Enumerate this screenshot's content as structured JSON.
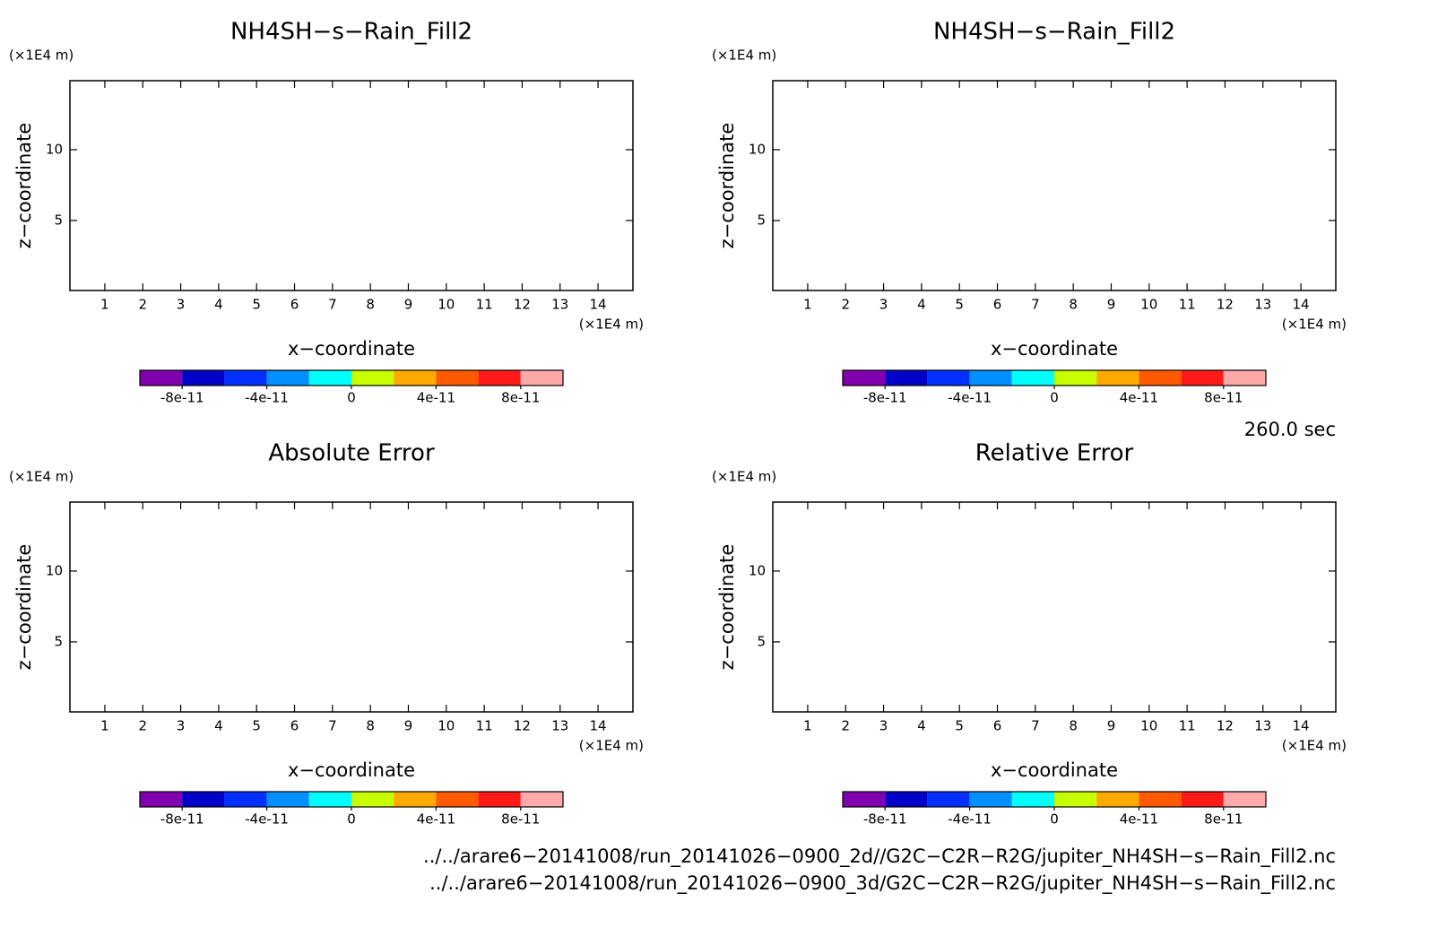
{
  "chart_data": [
    {
      "type": "contour",
      "title": "NH4SH−s−Rain_Fill2",
      "xlabel": "x−coordinate",
      "ylabel": "z−coordinate",
      "xunit": "(×1E4 m)",
      "yunit": "(×1E4 m)",
      "xlim": [
        0.08,
        14.92
      ],
      "ylim": [
        0.06,
        14.87
      ],
      "xticks": [
        1,
        2,
        3,
        4,
        5,
        6,
        7,
        8,
        9,
        10,
        11,
        12,
        13,
        14
      ],
      "yticks": [
        5,
        10
      ],
      "colorbar": {
        "colors": [
          "#8000b0",
          "#0000c8",
          "#0030ff",
          "#0090ff",
          "#00ffff",
          "#c8ff00",
          "#ffaa00",
          "#ff5a00",
          "#ff1a1a",
          "#ffaaaa"
        ],
        "bounds": [
          -1e-10,
          -8e-11,
          -6e-11,
          -4e-11,
          -2e-11,
          0,
          2e-11,
          4e-11,
          6e-11,
          8e-11,
          1e-10
        ],
        "ticks": [
          -8e-11,
          -4e-11,
          0,
          4e-11,
          8e-11
        ]
      }
    },
    {
      "type": "contour",
      "title": "NH4SH−s−Rain_Fill2",
      "xlabel": "x−coordinate",
      "ylabel": "z−coordinate",
      "xunit": "(×1E4 m)",
      "yunit": "(×1E4 m)",
      "xlim": [
        0.08,
        14.92
      ],
      "ylim": [
        0.06,
        14.87
      ],
      "xticks": [
        1,
        2,
        3,
        4,
        5,
        6,
        7,
        8,
        9,
        10,
        11,
        12,
        13,
        14
      ],
      "yticks": [
        5,
        10
      ],
      "colorbar": {
        "colors": [
          "#8000b0",
          "#0000c8",
          "#0030ff",
          "#0090ff",
          "#00ffff",
          "#c8ff00",
          "#ffaa00",
          "#ff5a00",
          "#ff1a1a",
          "#ffaaaa"
        ],
        "bounds": [
          -1e-10,
          -8e-11,
          -6e-11,
          -4e-11,
          -2e-11,
          0,
          2e-11,
          4e-11,
          6e-11,
          8e-11,
          1e-10
        ],
        "ticks": [
          -8e-11,
          -4e-11,
          0,
          4e-11,
          8e-11
        ]
      }
    },
    {
      "type": "contour",
      "title": "Absolute Error",
      "xlabel": "x−coordinate",
      "ylabel": "z−coordinate",
      "xunit": "(×1E4 m)",
      "yunit": "(×1E4 m)",
      "xlim": [
        0.08,
        14.92
      ],
      "ylim": [
        0.06,
        14.87
      ],
      "xticks": [
        1,
        2,
        3,
        4,
        5,
        6,
        7,
        8,
        9,
        10,
        11,
        12,
        13,
        14
      ],
      "yticks": [
        5,
        10
      ],
      "colorbar": {
        "colors": [
          "#8000b0",
          "#0000c8",
          "#0030ff",
          "#0090ff",
          "#00ffff",
          "#c8ff00",
          "#ffaa00",
          "#ff5a00",
          "#ff1a1a",
          "#ffaaaa"
        ],
        "bounds": [
          -1e-10,
          -8e-11,
          -6e-11,
          -4e-11,
          -2e-11,
          0,
          2e-11,
          4e-11,
          6e-11,
          8e-11,
          1e-10
        ],
        "ticks": [
          -8e-11,
          -4e-11,
          0,
          4e-11,
          8e-11
        ]
      }
    },
    {
      "type": "contour",
      "title": "Relative Error",
      "xlabel": "x−coordinate",
      "ylabel": "z−coordinate",
      "xunit": "(×1E4 m)",
      "yunit": "(×1E4 m)",
      "xlim": [
        0.08,
        14.92
      ],
      "ylim": [
        0.06,
        14.87
      ],
      "xticks": [
        1,
        2,
        3,
        4,
        5,
        6,
        7,
        8,
        9,
        10,
        11,
        12,
        13,
        14
      ],
      "yticks": [
        5,
        10
      ],
      "colorbar": {
        "colors": [
          "#8000b0",
          "#0000c8",
          "#0030ff",
          "#0090ff",
          "#00ffff",
          "#c8ff00",
          "#ffaa00",
          "#ff5a00",
          "#ff1a1a",
          "#ffaaaa"
        ],
        "bounds": [
          -1e-10,
          -8e-11,
          -6e-11,
          -4e-11,
          -2e-11,
          0,
          2e-11,
          4e-11,
          6e-11,
          8e-11,
          1e-10
        ],
        "ticks": [
          -8e-11,
          -4e-11,
          0,
          4e-11,
          8e-11
        ]
      }
    }
  ],
  "time_label": "260.0 sec",
  "files": [
    "../../arare6−20141008/run_20141026−0900_2d//G2C−C2R−R2G/jupiter_NH4SH−s−Rain_Fill2.nc",
    "../../arare6−20141008/run_20141026−0900_3d/G2C−C2R−R2G/jupiter_NH4SH−s−Rain_Fill2.nc"
  ]
}
